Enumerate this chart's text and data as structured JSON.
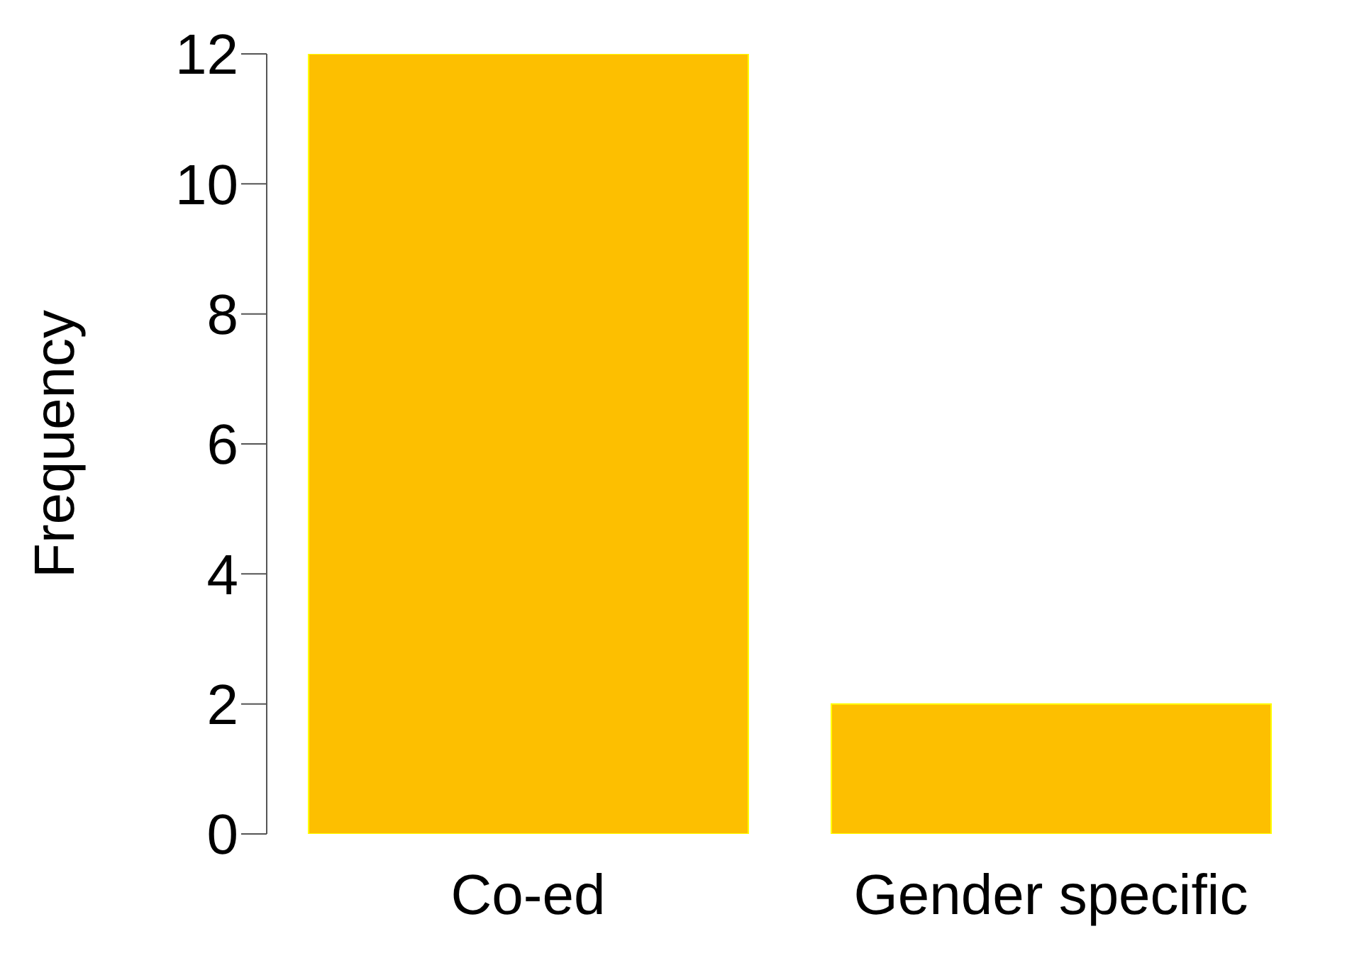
{
  "chart_data": {
    "type": "bar",
    "ylabel": "Frequency",
    "categories": [
      "Co-ed",
      "Gender specific"
    ],
    "values": [
      12,
      2
    ],
    "color": "#fdbf00",
    "ylim": [
      0,
      12
    ],
    "yticks": [
      0,
      2,
      4,
      6,
      8,
      10,
      12
    ],
    "grid": false
  }
}
